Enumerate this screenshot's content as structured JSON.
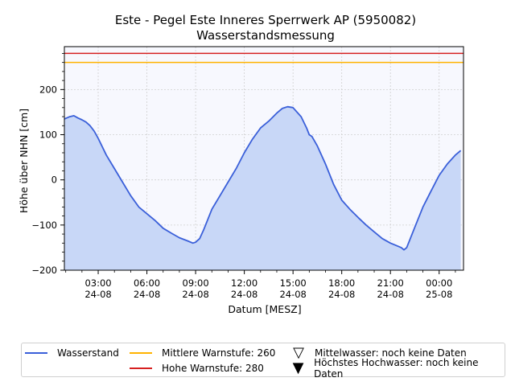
{
  "chart_data": {
    "type": "area",
    "title": "Este - Pegel Este Inneres Sperrwerk AP (5950082)",
    "subtitle": "Wasserstandsmessung",
    "xlabel": "Datum [MESZ]",
    "ylabel": "Höhe über NHN [cm]",
    "ylim": [
      -200,
      295
    ],
    "xlim": [
      "24-08 00:55",
      "25-08 01:30"
    ],
    "grid": true,
    "legend_position": "bottom",
    "x_ticks": [
      {
        "label1": "03:00",
        "label2": "24-08"
      },
      {
        "label1": "06:00",
        "label2": "24-08"
      },
      {
        "label1": "09:00",
        "label2": "24-08"
      },
      {
        "label1": "12:00",
        "label2": "24-08"
      },
      {
        "label1": "15:00",
        "label2": "24-08"
      },
      {
        "label1": "18:00",
        "label2": "24-08"
      },
      {
        "label1": "21:00",
        "label2": "24-08"
      },
      {
        "label1": "00:00",
        "label2": "25-08"
      }
    ],
    "y_ticks": [
      "200",
      "100",
      "0",
      "−100",
      "−200"
    ],
    "series": [
      {
        "name": "Wasserstand",
        "color": "#3a5fd9",
        "fill": "#c8d7f7",
        "x": [
          "24-08 00:55",
          "24-08 01:15",
          "24-08 01:30",
          "24-08 01:45",
          "24-08 02:00",
          "24-08 02:15",
          "24-08 02:30",
          "24-08 02:45",
          "24-08 03:00",
          "24-08 03:30",
          "24-08 04:00",
          "24-08 04:30",
          "24-08 05:00",
          "24-08 05:30",
          "24-08 06:00",
          "24-08 06:30",
          "24-08 07:00",
          "24-08 07:30",
          "24-08 08:00",
          "24-08 08:30",
          "24-08 08:50",
          "24-08 09:00",
          "24-08 09:15",
          "24-08 09:30",
          "24-08 10:00",
          "24-08 10:30",
          "24-08 11:00",
          "24-08 11:30",
          "24-08 12:00",
          "24-08 12:30",
          "24-08 13:00",
          "24-08 13:30",
          "24-08 14:00",
          "24-08 14:20",
          "24-08 14:40",
          "24-08 15:00",
          "24-08 15:30",
          "24-08 15:50",
          "24-08 16:00",
          "24-08 16:10",
          "24-08 16:30",
          "24-08 17:00",
          "24-08 17:30",
          "24-08 18:00",
          "24-08 18:30",
          "24-08 19:00",
          "24-08 19:30",
          "24-08 20:00",
          "24-08 20:30",
          "24-08 21:00",
          "24-08 21:20",
          "24-08 21:40",
          "24-08 21:50",
          "24-08 22:00",
          "24-08 22:30",
          "24-08 23:00",
          "24-08 23:30",
          "25-08 00:00",
          "25-08 00:30",
          "25-08 01:00",
          "25-08 01:20"
        ],
        "values": [
          135,
          140,
          142,
          137,
          133,
          128,
          120,
          108,
          92,
          55,
          25,
          -5,
          -35,
          -60,
          -75,
          -90,
          -107,
          -118,
          -128,
          -135,
          -140,
          -138,
          -130,
          -110,
          -65,
          -35,
          -5,
          25,
          60,
          90,
          115,
          130,
          148,
          158,
          162,
          160,
          140,
          115,
          100,
          96,
          75,
          35,
          -10,
          -45,
          -65,
          -83,
          -100,
          -115,
          -130,
          -140,
          -145,
          -150,
          -155,
          -150,
          -105,
          -60,
          -25,
          10,
          35,
          55,
          65
        ]
      }
    ],
    "reference_lines": [
      {
        "name": "Mittlere Warnstufe: 260",
        "value": 260,
        "color": "#ffb300"
      },
      {
        "name": "Hohe Warnstufe: 280",
        "value": 280,
        "color": "#d62020"
      }
    ],
    "legend": [
      {
        "label": "Wasserstand",
        "symbol": "line",
        "color": "#3a5fd9"
      },
      {
        "label": "Mittlere Warnstufe: 260",
        "symbol": "line",
        "color": "#ffb300"
      },
      {
        "label": "Hohe Warnstufe: 280",
        "symbol": "line",
        "color": "#d62020"
      },
      {
        "label": "Mittelwasser: noch keine Daten",
        "symbol": "▽",
        "color": "#000000"
      },
      {
        "label": "Höchstes Hochwasser: noch keine Daten",
        "symbol": "▼",
        "color": "#000000"
      }
    ]
  }
}
